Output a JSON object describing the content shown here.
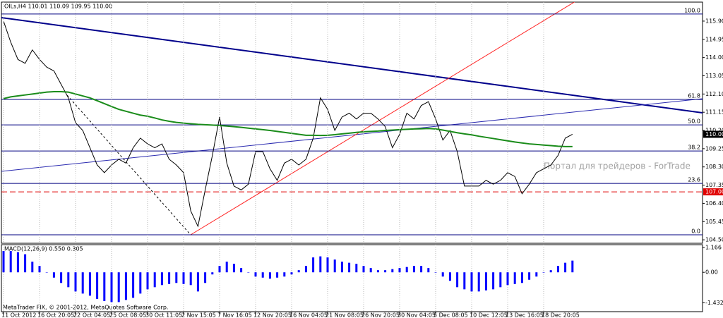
{
  "chart_data": [
    {
      "type": "line",
      "title": "OILs,H4  110.01 110.09 109.95 110.00",
      "categories": [
        "11 Oct 2012",
        null,
        null,
        null,
        null,
        "16 Oct 20:05",
        null,
        null,
        null,
        null,
        "22 Oct 04:05",
        null,
        null,
        null,
        null,
        "25 Oct 08:05",
        null,
        null,
        null,
        null,
        "30 Oct 11:05",
        null,
        null,
        null,
        null,
        "2 Nov 15:05",
        null,
        null,
        null,
        null,
        "7 Nov 16:05",
        null,
        null,
        null,
        null,
        "12 Nov 20:05",
        null,
        null,
        null,
        null,
        "16 Nov 04:05",
        null,
        null,
        null,
        null,
        "21 Nov 08:05",
        null,
        null,
        null,
        null,
        "26 Nov 20:05",
        null,
        null,
        null,
        null,
        "30 Nov 04:05",
        null,
        null,
        null,
        null,
        "5 Dec 08:05",
        null,
        null,
        null,
        null,
        "10 Dec 12:05",
        null,
        null,
        null,
        null,
        "13 Dec 16:05",
        null,
        null,
        null,
        null,
        "18 Dec 20:05",
        null,
        null,
        null,
        null
      ],
      "series": [
        {
          "color": "#000000",
          "values": [
            115.9,
            114.8,
            113.9,
            113.7,
            114.4,
            113.9,
            113.5,
            113.3,
            112.6,
            111.9,
            110.6,
            110.2,
            109.3,
            108.4,
            108.0,
            108.4,
            108.7,
            108.5,
            109.3,
            109.8,
            109.5,
            109.3,
            109.5,
            108.7,
            108.4,
            108.0,
            106.0,
            105.2,
            107.1,
            108.9,
            110.9,
            108.5,
            107.3,
            107.1,
            107.4,
            109.1,
            109.1,
            108.2,
            107.6,
            108.5,
            108.7,
            108.4,
            108.7,
            109.8,
            111.9,
            111.3,
            110.2,
            110.9,
            111.1,
            110.8,
            111.1,
            111.1,
            110.8,
            110.4,
            109.3,
            110.0,
            111.1,
            110.8,
            111.5,
            111.7,
            110.8,
            109.7,
            110.2,
            109.1,
            107.3,
            107.3,
            107.3,
            107.6,
            107.4,
            107.6,
            108.0,
            107.8,
            106.9,
            107.4,
            108.0,
            108.2,
            108.4,
            108.9,
            109.8,
            110.0
          ]
        },
        {
          "color": "#1a8c1a",
          "values": [
            111.86,
            111.95,
            112.0,
            112.05,
            112.1,
            112.15,
            112.2,
            112.22,
            112.22,
            112.2,
            112.1,
            112.0,
            111.9,
            111.75,
            111.6,
            111.45,
            111.3,
            111.2,
            111.1,
            111.0,
            110.94,
            110.85,
            110.75,
            110.68,
            110.62,
            110.58,
            110.55,
            110.52,
            110.5,
            110.48,
            110.46,
            110.43,
            110.4,
            110.36,
            110.32,
            110.28,
            110.24,
            110.2,
            110.15,
            110.1,
            110.05,
            110.0,
            109.95,
            109.95,
            109.94,
            109.95,
            109.98,
            110.02,
            110.06,
            110.1,
            110.13,
            110.15,
            110.17,
            110.2,
            110.22,
            110.24,
            110.26,
            110.28,
            110.29,
            110.3,
            110.28,
            110.22,
            110.15,
            110.08,
            110.02,
            109.97,
            109.9,
            109.84,
            109.78,
            109.72,
            109.66,
            109.6,
            109.55,
            109.5,
            109.47,
            109.44,
            109.41,
            109.38,
            109.36,
            109.36
          ]
        }
      ],
      "ylim": [
        104.32,
        116.89
      ],
      "yticks": [
        {
          "value": 115.9,
          "label": "115.90"
        },
        {
          "value": 114.95,
          "label": "114.95"
        },
        {
          "value": 114,
          "label": "114.00"
        },
        {
          "value": 113.05,
          "label": "113.05"
        },
        {
          "value": 112.1,
          "label": "112.10"
        },
        {
          "value": 111.15,
          "label": "111.15"
        },
        {
          "value": 110.2,
          "label": "110.20"
        },
        {
          "value": 109.25,
          "label": "109.25"
        },
        {
          "value": 108.3,
          "label": "108.30"
        },
        {
          "value": 107.35,
          "label": "107.35"
        },
        {
          "value": 106.4,
          "label": "106.40"
        },
        {
          "value": 105.45,
          "label": "105.45"
        },
        {
          "value": 104.5,
          "label": "104.50"
        }
      ],
      "fib_levels": [
        {
          "label": "100.0",
          "value": 116.27
        },
        {
          "label": "61.8",
          "value": 111.82
        },
        {
          "label": "50.0",
          "value": 110.49
        },
        {
          "label": "38.2",
          "value": 109.13
        },
        {
          "label": "23.6",
          "value": 107.44
        },
        {
          "label": "0.0",
          "value": 104.76
        }
      ],
      "level_color": "#000080",
      "current_price": {
        "value": 110,
        "label": "110.00"
      },
      "alert_level": {
        "value": 107,
        "label": "107.00"
      },
      "alert_color": "#e00000",
      "watermark": "Портал для трейдеров - ForTrade",
      "grid": true
    },
    {
      "type": "bar",
      "title": "MACD(12,26,9) 0.550 0.305",
      "series": [
        {
          "type": "bar",
          "color": "#0000ff",
          "values": [
            1.0,
            1.0,
            0.95,
            0.85,
            0.5,
            0.3,
            0.0,
            -0.25,
            -0.5,
            -0.7,
            -0.9,
            -1.0,
            -1.1,
            -1.25,
            -1.35,
            -1.4,
            -1.4,
            -1.3,
            -1.2,
            -1.0,
            -0.8,
            -0.7,
            -0.6,
            -0.55,
            -0.5,
            -0.55,
            -0.6,
            -0.9,
            -0.5,
            -0.1,
            0.3,
            0.5,
            0.4,
            0.2,
            0.0,
            -0.2,
            -0.25,
            -0.3,
            -0.25,
            -0.2,
            -0.1,
            0.1,
            0.3,
            0.7,
            0.75,
            0.7,
            0.6,
            0.5,
            0.45,
            0.4,
            0.3,
            0.2,
            0.1,
            0.1,
            0.15,
            0.2,
            0.25,
            0.3,
            0.3,
            0.2,
            0.0,
            -0.2,
            -0.4,
            -0.7,
            -0.8,
            -0.9,
            -0.9,
            -0.85,
            -0.8,
            -0.7,
            -0.6,
            -0.55,
            -0.5,
            -0.35,
            -0.2,
            0.0,
            0.1,
            0.3,
            0.45,
            0.55
          ]
        },
        {
          "type": "line",
          "dashed": true,
          "color": "#ff0000",
          "values": [
            0.9,
            0.95,
            0.97,
            0.95,
            0.85,
            0.7,
            0.5,
            0.3,
            0.1,
            -0.1,
            -0.3,
            -0.5,
            -0.7,
            -0.85,
            -1.0,
            -1.1,
            -1.2,
            -1.25,
            -1.25,
            -1.2,
            -1.1,
            -1.0,
            -0.9,
            -0.8,
            -0.7,
            -0.65,
            -0.6,
            -0.65,
            -0.6,
            -0.5,
            -0.35,
            -0.15,
            0.0,
            0.1,
            0.1,
            0.05,
            -0.05,
            -0.1,
            -0.15,
            -0.2,
            -0.15,
            -0.1,
            0.0,
            0.2,
            0.35,
            0.5,
            0.55,
            0.55,
            0.5,
            0.45,
            0.4,
            0.35,
            0.3,
            0.25,
            0.2,
            0.2,
            0.2,
            0.22,
            0.25,
            0.25,
            0.2,
            0.1,
            -0.05,
            -0.25,
            -0.45,
            -0.6,
            -0.7,
            -0.8,
            -0.82,
            -0.8,
            -0.75,
            -0.7,
            -0.65,
            -0.55,
            -0.45,
            -0.3,
            -0.15,
            0.0,
            0.15,
            0.3
          ]
        }
      ],
      "ylim": [
        -1.85,
        1.3
      ],
      "yticks": [
        1.166,
        {
          "value": 0,
          "label": "0.00"
        },
        -1.432
      ],
      "footer": "MetaTrader FIX, © 2001-2012, MetaQuotes Software Corp."
    }
  ]
}
